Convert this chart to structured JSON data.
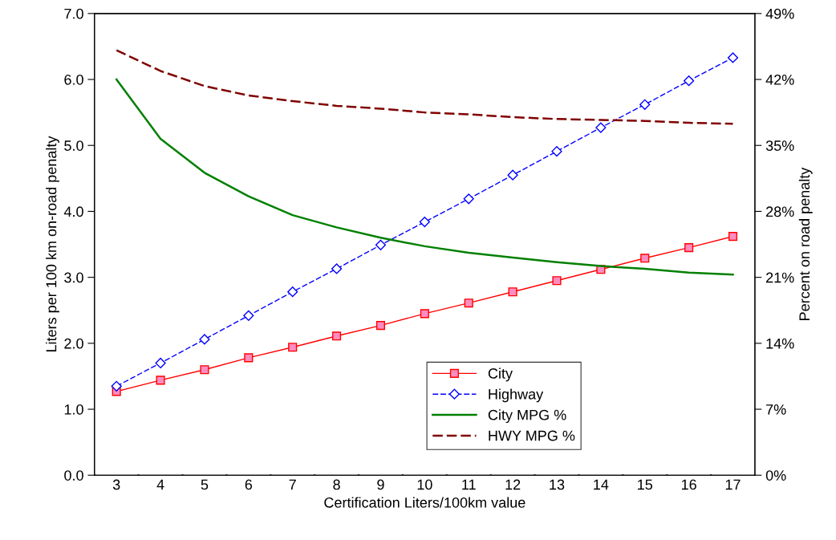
{
  "chart_data": {
    "type": "line",
    "xlabel": "Certification Liters/100km value",
    "ylabel": "Liters per 100 km on-road penalty",
    "y2label": "Percent on road penalty",
    "categories": [
      "3",
      "4",
      "5",
      "6",
      "7",
      "8",
      "9",
      "10",
      "11",
      "12",
      "13",
      "14",
      "15",
      "16",
      "17"
    ],
    "ylim": [
      0,
      7
    ],
    "yticks": [
      {
        "value": 0,
        "label": "0.0"
      },
      {
        "value": 1,
        "label": "1.0"
      },
      {
        "value": 2,
        "label": "2.0"
      },
      {
        "value": 3,
        "label": "3.0"
      },
      {
        "value": 4,
        "label": "4.0"
      },
      {
        "value": 5,
        "label": "5.0"
      },
      {
        "value": 6,
        "label": "6.0"
      },
      {
        "value": 7,
        "label": "7.0"
      }
    ],
    "y2lim": [
      0,
      49
    ],
    "y2ticks": [
      {
        "value": 0,
        "label": "0%"
      },
      {
        "value": 7,
        "label": "7%"
      },
      {
        "value": 14,
        "label": "14%"
      },
      {
        "value": 21,
        "label": "21%"
      },
      {
        "value": 28,
        "label": "28%"
      },
      {
        "value": 35,
        "label": "35%"
      },
      {
        "value": 42,
        "label": "42%"
      },
      {
        "value": 49,
        "label": "49%"
      }
    ],
    "legend": "bottom",
    "grid": false,
    "series": [
      {
        "name": "City",
        "color": "#ff0000",
        "marker": "square",
        "line_style": "solid",
        "values": [
          1.27,
          1.44,
          1.6,
          1.78,
          1.94,
          2.11,
          2.27,
          2.45,
          2.61,
          2.78,
          2.95,
          3.12,
          3.29,
          3.45,
          3.62
        ]
      },
      {
        "name": "Highway",
        "color": "#0000ff",
        "marker": "diamond",
        "line_style": "dashed",
        "values": [
          1.35,
          1.7,
          2.06,
          2.42,
          2.78,
          3.13,
          3.49,
          3.84,
          4.19,
          4.55,
          4.91,
          5.27,
          5.62,
          5.98,
          6.33
        ]
      },
      {
        "name": "City MPG %",
        "color": "#008000",
        "marker": "none",
        "line_style": "solid",
        "axis": "y2",
        "values": [
          42.0,
          35.7,
          32.1,
          29.6,
          27.6,
          26.3,
          25.2,
          24.3,
          23.6,
          23.1,
          22.6,
          22.2,
          21.9,
          21.5,
          21.3
        ]
      },
      {
        "name": "HWY MPG %",
        "color": "#800000",
        "marker": "none",
        "line_style": "dashed",
        "axis": "y2",
        "values": [
          45.1,
          42.9,
          41.3,
          40.3,
          39.7,
          39.2,
          38.9,
          38.5,
          38.3,
          38.0,
          37.8,
          37.7,
          37.6,
          37.4,
          37.3
        ]
      }
    ]
  }
}
